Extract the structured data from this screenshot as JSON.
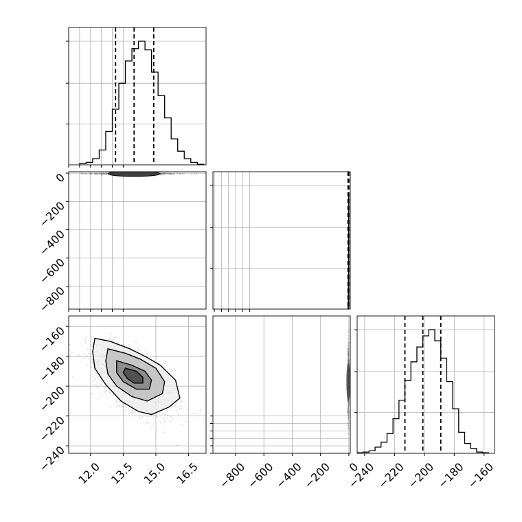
{
  "chart_data": {
    "type": "corner",
    "title": "",
    "grid": true,
    "line_color": "#000000",
    "grid_color": "#b0b0b0",
    "scatter_color": "#7f7f7f",
    "params": [
      {
        "range": [
          11.0,
          17.3
        ],
        "median": 14.0,
        "q_low": 13.15,
        "q_high": 14.9
      },
      {
        "range": [
          -960,
          10
        ],
        "median": -2,
        "q_low": -6,
        "q_high": 0
      },
      {
        "range": [
          -245,
          -153
        ],
        "median": -201,
        "q_low": -213,
        "q_high": -189
      }
    ],
    "panels": [
      {
        "id": "hist-0",
        "type": "histogram",
        "xticks": [],
        "yticks": [],
        "hist_ylim": [
          0,
          1
        ],
        "bin_edges": [
          11.5,
          11.8,
          12.1,
          12.4,
          12.7,
          13.0,
          13.3,
          13.6,
          13.9,
          14.2,
          14.5,
          14.8,
          15.1,
          15.4,
          15.7,
          16.0,
          16.3,
          16.6,
          16.9,
          17.2
        ],
        "counts": [
          0.01,
          0.02,
          0.05,
          0.12,
          0.27,
          0.45,
          0.66,
          0.84,
          0.94,
          1.0,
          0.93,
          0.75,
          0.56,
          0.38,
          0.21,
          0.11,
          0.05,
          0.02,
          0.005
        ]
      },
      {
        "id": "scatter-1-0",
        "type": "2d-density",
        "xticks": [],
        "yticks": [
          {
            "v": 0,
            "l": "0"
          },
          {
            "v": -200,
            "l": "−200"
          },
          {
            "v": -400,
            "l": "−400"
          },
          {
            "v": -600,
            "l": "−600"
          },
          {
            "v": -800,
            "l": "−800"
          }
        ]
      },
      {
        "id": "hist-1",
        "type": "histogram",
        "xticks": [],
        "yticks": [],
        "bin_edges": [
          -14,
          -12,
          -10,
          -8,
          -6,
          -4,
          -2,
          0,
          2
        ],
        "counts": [
          0,
          0,
          0,
          0,
          0.02,
          0.28,
          0.92,
          0,
          0
        ]
      },
      {
        "id": "scatter-2-0",
        "type": "2d-density",
        "xticks": [
          {
            "v": 12.0,
            "l": "12.0"
          },
          {
            "v": 13.5,
            "l": "13.5"
          },
          {
            "v": 15.0,
            "l": "15.0"
          },
          {
            "v": 16.5,
            "l": "16.5"
          }
        ],
        "yticks": [
          {
            "v": -160,
            "l": "−160"
          },
          {
            "v": -180,
            "l": "−180"
          },
          {
            "v": -200,
            "l": "−200"
          },
          {
            "v": -220,
            "l": "−220"
          },
          {
            "v": -240,
            "l": "−240"
          }
        ],
        "contours": [
          {
            "level": "outer",
            "points": [
              [
                12.2,
                -168
              ],
              [
                12.9,
                -170
              ],
              [
                13.8,
                -175
              ],
              [
                14.5,
                -180
              ],
              [
                15.2,
                -186
              ],
              [
                15.9,
                -196
              ],
              [
                16.1,
                -208
              ],
              [
                15.6,
                -214
              ],
              [
                14.8,
                -219
              ],
              [
                14.2,
                -217
              ],
              [
                13.4,
                -210
              ],
              [
                12.7,
                -199
              ],
              [
                12.2,
                -188
              ],
              [
                12.1,
                -177
              ]
            ]
          },
          {
            "level": "mid",
            "points": [
              [
                12.8,
                -175
              ],
              [
                13.6,
                -178
              ],
              [
                14.3,
                -182
              ],
              [
                15.0,
                -188
              ],
              [
                15.4,
                -197
              ],
              [
                15.3,
                -205
              ],
              [
                14.6,
                -210
              ],
              [
                13.9,
                -207
              ],
              [
                13.2,
                -200
              ],
              [
                12.8,
                -192
              ],
              [
                12.7,
                -183
              ]
            ]
          },
          {
            "level": "inner",
            "points": [
              [
                13.2,
                -183
              ],
              [
                13.9,
                -186
              ],
              [
                14.5,
                -190
              ],
              [
                14.8,
                -196
              ],
              [
                14.7,
                -202
              ],
              [
                14.1,
                -202
              ],
              [
                13.5,
                -197
              ],
              [
                13.2,
                -191
              ]
            ]
          },
          {
            "level": "core",
            "points": [
              [
                13.6,
                -188
              ],
              [
                14.1,
                -190
              ],
              [
                14.4,
                -194
              ],
              [
                14.4,
                -198
              ],
              [
                14.0,
                -198
              ],
              [
                13.7,
                -195
              ],
              [
                13.5,
                -191
              ]
            ]
          }
        ]
      },
      {
        "id": "scatter-2-1",
        "type": "2d-density",
        "xticks": [
          {
            "v": -800,
            "l": "−800"
          },
          {
            "v": -600,
            "l": "−600"
          },
          {
            "v": -400,
            "l": "−400"
          },
          {
            "v": -200,
            "l": "−200"
          },
          {
            "v": 0,
            "l": "0"
          }
        ],
        "yticks": []
      },
      {
        "id": "hist-2",
        "type": "histogram",
        "xticks": [
          {
            "v": -240,
            "l": "−240"
          },
          {
            "v": -220,
            "l": "−220"
          },
          {
            "v": -200,
            "l": "−200"
          },
          {
            "v": -180,
            "l": "−180"
          },
          {
            "v": -160,
            "l": "−160"
          }
        ],
        "yticks": [],
        "hist_ylim": [
          0,
          1
        ],
        "bin_edges": [
          -245,
          -241,
          -237,
          -233,
          -229,
          -225,
          -221,
          -217,
          -213,
          -209,
          -205,
          -201,
          -197,
          -193,
          -189,
          -185,
          -181,
          -177,
          -173,
          -169,
          -165,
          -161,
          -157
        ],
        "counts": [
          0.005,
          0.01,
          0.02,
          0.05,
          0.09,
          0.16,
          0.28,
          0.43,
          0.59,
          0.74,
          0.86,
          0.95,
          1.0,
          0.91,
          0.77,
          0.58,
          0.36,
          0.17,
          0.08,
          0.04,
          0.01,
          0.005
        ]
      }
    ]
  }
}
